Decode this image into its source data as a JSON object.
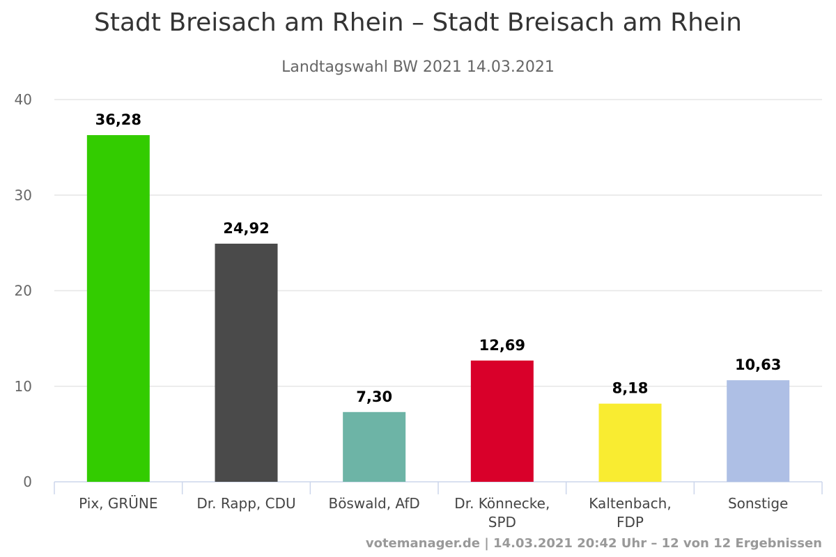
{
  "chart_data": {
    "type": "bar",
    "title": "Stadt Breisach am Rhein – Stadt Breisach am Rhein",
    "subtitle": "Landtagswahl BW 2021 14.03.2021",
    "categories": [
      [
        "Pix, GRÜNE"
      ],
      [
        "Dr. Rapp, CDU"
      ],
      [
        "Böswald, AfD"
      ],
      [
        "Dr. Könnecke,",
        "SPD"
      ],
      [
        "Kaltenbach,",
        "FDP"
      ],
      [
        "Sonstige"
      ]
    ],
    "values": [
      36.28,
      24.92,
      7.3,
      12.69,
      8.18,
      10.63
    ],
    "value_labels": [
      "36,28",
      "24,92",
      "7,30",
      "12,69",
      "8,18",
      "10,63"
    ],
    "colors": [
      "#33cc00",
      "#4a4a4a",
      "#6db4a6",
      "#d9002a",
      "#f9ec31",
      "#aebfe5"
    ],
    "ylim": [
      0,
      40
    ],
    "yticks": [
      0,
      10,
      20,
      30,
      40
    ],
    "grid": true,
    "legend": "none"
  },
  "credits": "votemanager.de | 14.03.2021 20:42 Uhr – 12 von 12 Ergebnissen"
}
